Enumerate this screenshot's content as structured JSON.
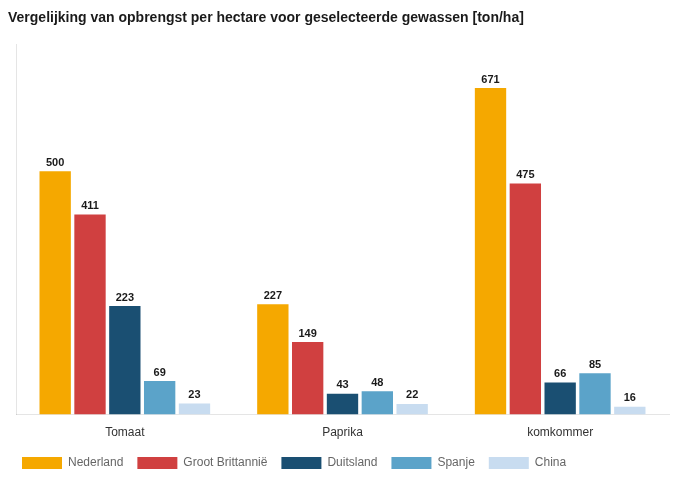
{
  "chart_data": {
    "type": "bar",
    "title": "Vergelijking van opbrengst per hectare voor geselecteerde gewassen [ton/ha]",
    "categories": [
      "Tomaat",
      "Paprika",
      "komkommer"
    ],
    "series": [
      {
        "name": "Nederland",
        "color": "#F5A800",
        "values": [
          500,
          227,
          671
        ]
      },
      {
        "name": "Groot Brittannië",
        "color": "#D04040",
        "values": [
          411,
          149,
          475
        ]
      },
      {
        "name": "Duitsland",
        "color": "#1A4F72",
        "values": [
          223,
          43,
          66
        ]
      },
      {
        "name": "Spanje",
        "color": "#5BA3C9",
        "values": [
          69,
          48,
          85
        ]
      },
      {
        "name": "China",
        "color": "#C8DCF0",
        "values": [
          23,
          22,
          16
        ]
      }
    ],
    "ylim": [
      0,
      760
    ],
    "grid": false,
    "legend": "bottom",
    "data_labels": true,
    "tick_labels": "x"
  }
}
